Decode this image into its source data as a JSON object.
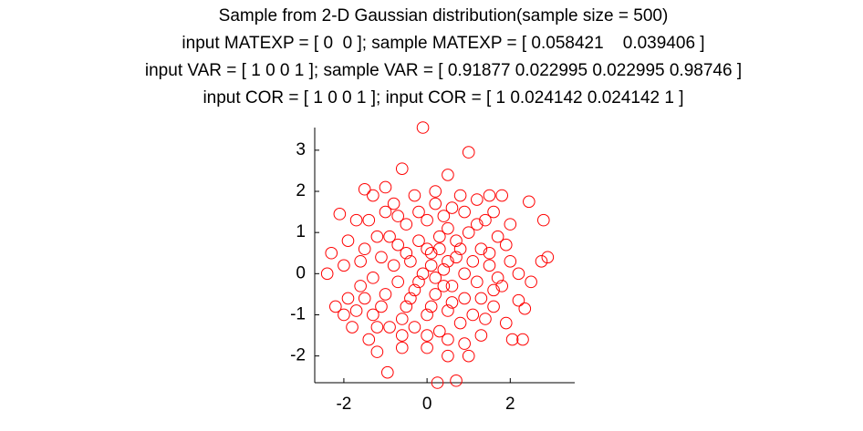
{
  "chart_data": {
    "type": "scatter",
    "title": [
      "Sample from 2-D Gaussian distribution(sample size = 500)",
      "input MATEXP = [ 0  0 ]; sample MATEXP = [ 0.058421    0.039406 ]",
      "input VAR = [ 1 0 0 1 ]; sample VAR = [ 0.91877 0.022995 0.022995 0.98746 ]",
      "input COR = [ 1 0 0 1 ]; input COR = [ 1 0.024142 0.024142 1 ]"
    ],
    "x": [
      -0.1,
      1.0,
      -0.6,
      0.5,
      -1.5,
      -2.1,
      2.45,
      2.8,
      2.9,
      2.75,
      -2.3,
      -2.2,
      0.25,
      0.7,
      -0.95,
      -1.2,
      2.05,
      2.3,
      1.9,
      1.6,
      2.2,
      2.35,
      -1.8,
      1.5,
      -0.8,
      1.2,
      -1.4,
      -1.7,
      -1.9,
      -2.0,
      -1.6,
      -1.9,
      -1.3,
      -0.6,
      0.0,
      0.5,
      0.9,
      1.3,
      1.4,
      1.8,
      2.0,
      1.9,
      2.0,
      1.6,
      0.8,
      0.2,
      -0.3,
      -1.0,
      -1.2,
      -0.5,
      0.0,
      0.5,
      1.0,
      1.3,
      1.5,
      1.2,
      0.9,
      0.5,
      0.0,
      -0.5,
      -1.0,
      -1.3,
      -1.1,
      -0.7,
      -0.2,
      0.3,
      0.7,
      0.9,
      0.6,
      0.2,
      -0.3,
      -0.7,
      -0.8,
      -0.4,
      0.1,
      0.4,
      0.2,
      -0.1,
      0.3,
      -0.6,
      1.1,
      1.7,
      -1.5,
      -1.7,
      0.6,
      -0.2,
      1.4,
      2.2,
      -2.4,
      -1.4,
      0.3,
      -0.3,
      0.8,
      1.6,
      -0.9,
      0.1,
      0.5,
      -0.2,
      0.4,
      0.0,
      1.1,
      -1.1,
      0.7,
      -0.5,
      1.8,
      -1.0,
      0.4,
      -1.5,
      1.3,
      0.1,
      2.5,
      -2.0,
      -0.6,
      1.0,
      -1.3,
      0.9,
      -0.9,
      1.5,
      -0.4,
      0.6,
      0.8,
      -0.7,
      0.2,
      1.2,
      -1.6,
      1.7,
      -1.2,
      0.0,
      0.5
    ],
    "values": [
      3.55,
      2.95,
      2.55,
      2.4,
      2.05,
      1.45,
      1.75,
      1.3,
      0.4,
      0.3,
      0.5,
      -0.8,
      -2.65,
      -2.6,
      -2.4,
      -1.9,
      -1.6,
      -1.6,
      -1.2,
      -0.8,
      -0.65,
      -0.85,
      -1.3,
      1.9,
      1.7,
      1.8,
      1.3,
      1.3,
      0.8,
      0.2,
      -0.3,
      -0.6,
      -1.0,
      -1.5,
      -1.8,
      -2.0,
      -1.7,
      -1.5,
      -1.1,
      -0.3,
      0.3,
      0.7,
      1.2,
      1.5,
      1.9,
      2.0,
      1.9,
      1.5,
      0.9,
      1.2,
      1.3,
      1.1,
      1.0,
      0.6,
      0.2,
      -0.2,
      -0.6,
      -0.9,
      -1.0,
      -0.8,
      -0.5,
      -0.1,
      0.4,
      0.7,
      0.8,
      0.6,
      0.4,
      0.0,
      -0.3,
      -0.5,
      -0.4,
      -0.2,
      0.2,
      0.3,
      0.2,
      0.1,
      -0.1,
      0.0,
      0.9,
      -1.1,
      -1.0,
      0.9,
      0.6,
      -0.9,
      1.6,
      1.5,
      1.3,
      0.0,
      0.0,
      -1.6,
      -1.4,
      -1.3,
      -1.2,
      -0.4,
      -1.3,
      0.5,
      0.3,
      -0.2,
      -0.3,
      0.6,
      0.3,
      -0.8,
      0.8,
      0.5,
      1.9,
      2.1,
      1.4,
      -0.6,
      -0.6,
      -0.8,
      -0.2,
      -1.0,
      -1.8,
      -2.0,
      1.9,
      1.5,
      0.9,
      0.5,
      -0.6,
      -0.7,
      0.6,
      1.4,
      1.7,
      1.2,
      0.3,
      -0.1,
      -1.3,
      -1.5,
      -1.6
    ],
    "color": "#ff0000",
    "xlim": [
      -2.7,
      3.55
    ],
    "xticks": [
      -2,
      0,
      2
    ],
    "ylim": [
      -2.65,
      3.55
    ],
    "yticks": [
      -2,
      -1,
      0,
      1,
      2,
      3
    ],
    "grid": false
  }
}
